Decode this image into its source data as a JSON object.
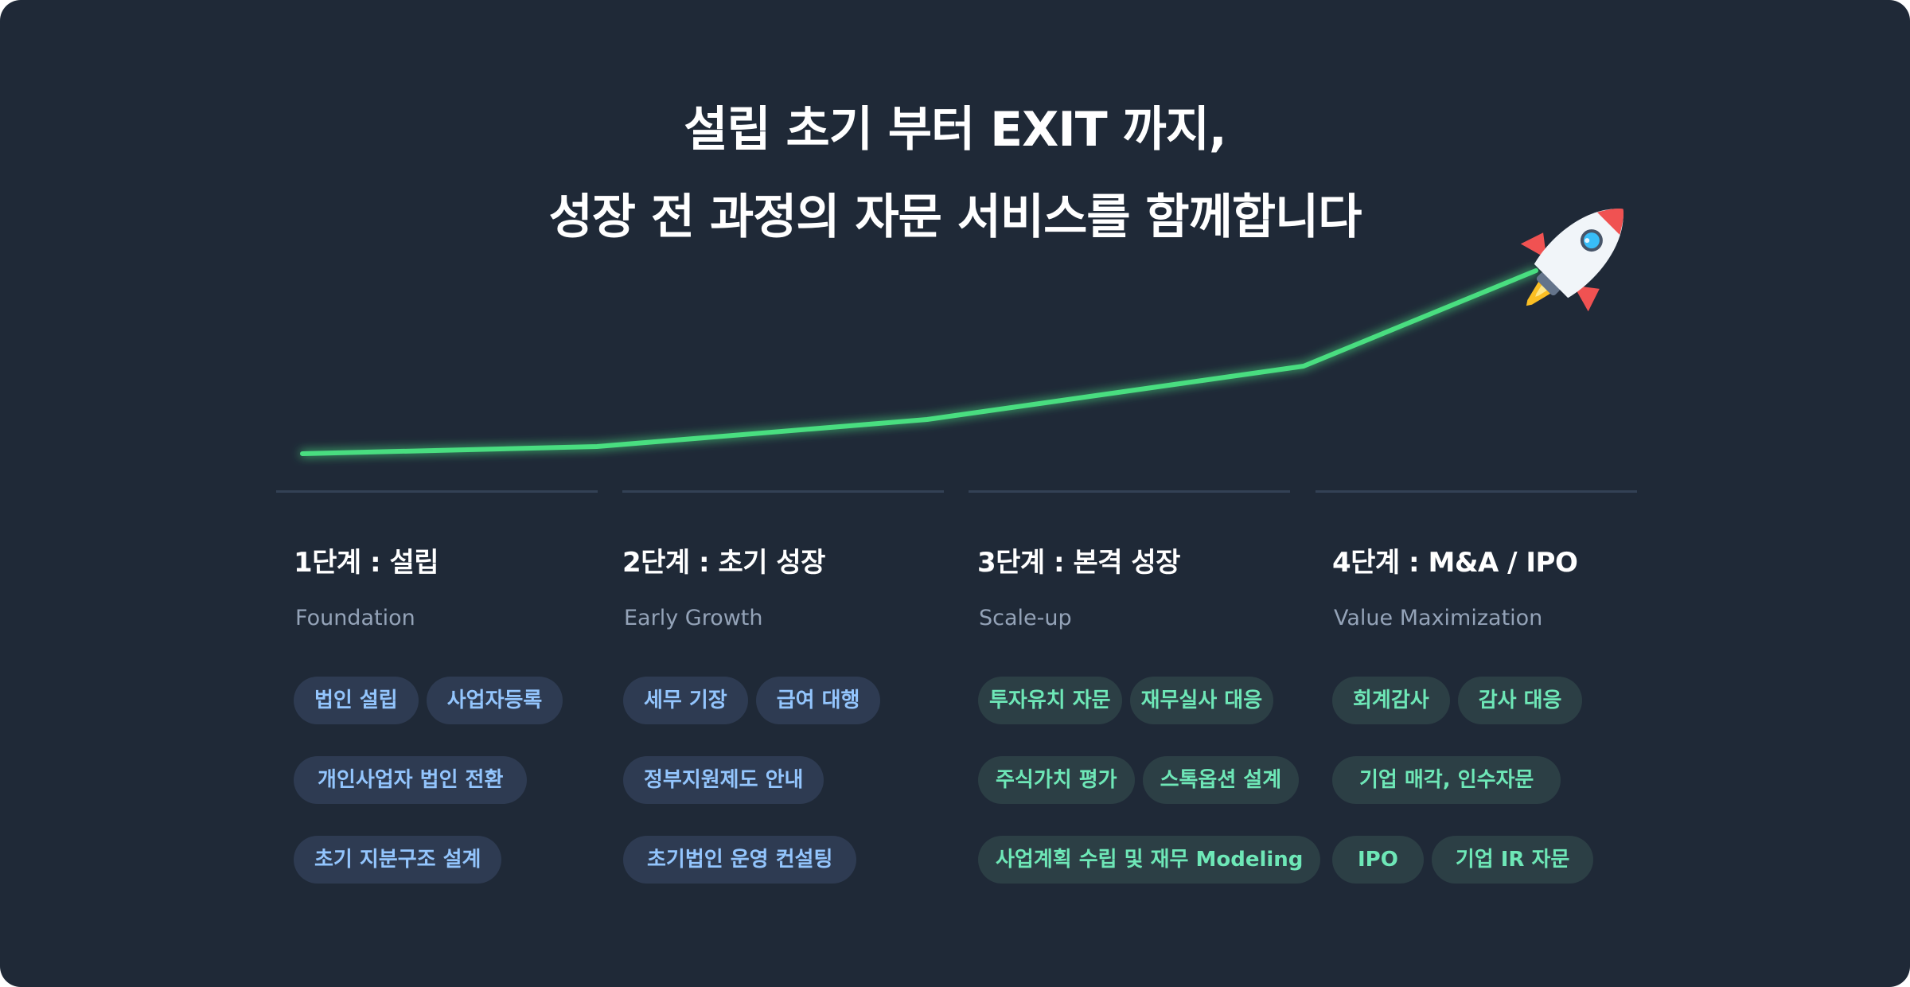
{
  "headline": {
    "line1": "설립 초기 부터 EXIT 까지,",
    "line2": "성장 전 과정의 자문 서비스를 함께합니다"
  },
  "colors": {
    "background": "#1f2937",
    "growth_line": "#4ade80",
    "chip_blue_bg": "#2e3b52",
    "chip_blue_text": "#93c5fd",
    "chip_green_bg": "#2c3f45",
    "chip_green_text": "#6ee7b7",
    "rocket_body": "#f1f5f9",
    "rocket_fin": "#f05252",
    "rocket_window": "#38bdf8",
    "rocket_flame": "#fbbf24"
  },
  "rocket_icon": "rocket-icon",
  "stages": [
    {
      "title": "1단계 : 설립",
      "subtitle": "Foundation",
      "chip_color": "blue",
      "rows": [
        [
          "법인 설립",
          "사업자등록"
        ],
        [
          "개인사업자 법인 전환"
        ],
        [
          "초기 지분구조 설계"
        ]
      ]
    },
    {
      "title": "2단계 : 초기 성장",
      "subtitle": "Early Growth",
      "chip_color": "blue",
      "rows": [
        [
          "세무 기장",
          "급여 대행"
        ],
        [
          "정부지원제도 안내"
        ],
        [
          "초기법인 운영 컨설팅"
        ]
      ]
    },
    {
      "title": "3단계 : 본격 성장",
      "subtitle": "Scale-up",
      "chip_color": "green",
      "rows": [
        [
          "투자유치 자문",
          "재무실사 대응"
        ],
        [
          "주식가치 평가",
          "스톡옵션 설계"
        ],
        [
          "사업계획 수립 및 재무 Modeling"
        ]
      ]
    },
    {
      "title": "4단계 : M&A / IPO",
      "subtitle": "Value Maximization",
      "chip_color": "green",
      "rows": [
        [
          "회계감사",
          "감사 대응"
        ],
        [
          "기업 매각, 인수자문"
        ],
        [
          "IPO",
          "기업 IR 자문"
        ]
      ]
    }
  ]
}
